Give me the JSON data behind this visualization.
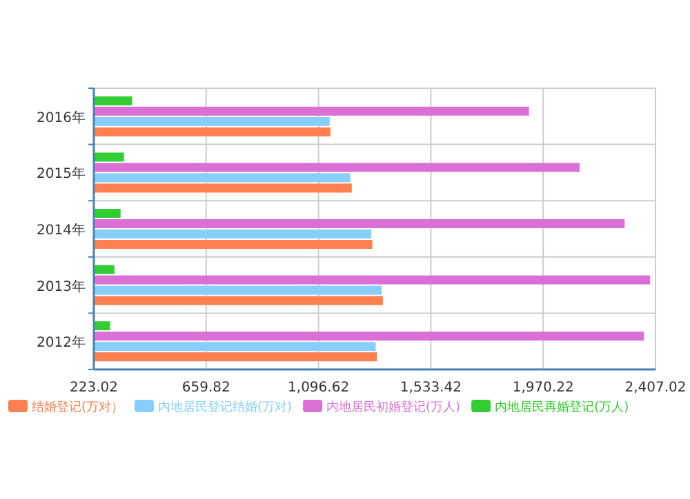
{
  "chart_data": {
    "type": "bar",
    "orientation": "horizontal",
    "categories": [
      "2016年",
      "2015年",
      "2014年",
      "2013年",
      "2012年"
    ],
    "series": [
      {
        "name": "结婚登记(万对）",
        "color": "#ff7f50",
        "values": [
          1143,
          1226,
          1306,
          1347,
          1324
        ]
      },
      {
        "name": "内地居民登记结婚(万对)",
        "color": "#87cefa",
        "values": [
          1140,
          1220,
          1302,
          1342,
          1319
        ]
      },
      {
        "name": "内地居民初婚登记(万人)",
        "color": "#da70d6",
        "values": [
          1915,
          2112,
          2287,
          2386,
          2362
        ]
      },
      {
        "name": "内地居民再婚登记(万人)",
        "color": "#32cd32",
        "values": [
          372,
          340,
          327,
          303,
          286
        ]
      }
    ],
    "xlim": [
      223.02,
      2407.02
    ],
    "xticks": [
      223.02,
      659.82,
      {
        "value": 1096.62,
        "label": "1,096.62"
      },
      {
        "value": 1533.42,
        "label": "1,533.42"
      },
      {
        "value": 1970.22,
        "label": "1,970.22"
      },
      {
        "value": 2407.02,
        "label": "2,407.02"
      }
    ],
    "grid": true,
    "legend": "bottom"
  }
}
